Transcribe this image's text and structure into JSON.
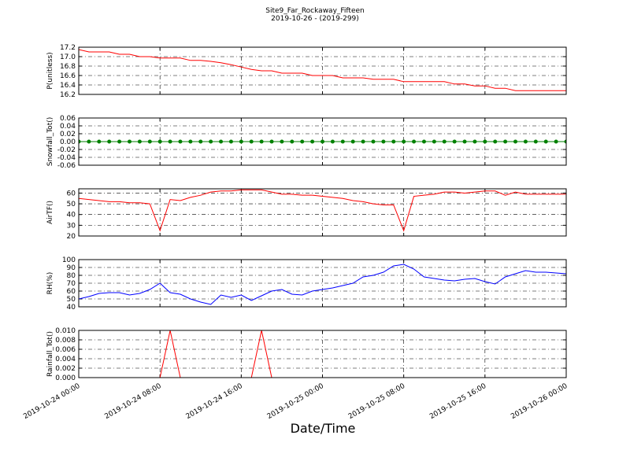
{
  "chart_data": [
    {
      "type": "line",
      "title": "Site9_Far_Rockaway_Fifteen",
      "subtitle": "2019-10-26 - (2019-299)",
      "ylabel": "P(unitless)",
      "color": "#ff0000",
      "xlim": [
        "2019-10-24 00:00",
        "2019-10-26 00:00"
      ],
      "x": [
        "2019-10-24 00:00",
        "2019-10-24 01:00",
        "2019-10-24 02:00",
        "2019-10-24 03:00",
        "2019-10-24 04:00",
        "2019-10-24 05:00",
        "2019-10-24 06:00",
        "2019-10-24 07:00",
        "2019-10-24 08:00",
        "2019-10-24 09:00",
        "2019-10-24 10:00",
        "2019-10-24 11:00",
        "2019-10-24 12:00",
        "2019-10-24 13:00",
        "2019-10-24 14:00",
        "2019-10-24 15:00",
        "2019-10-24 16:00",
        "2019-10-24 17:00",
        "2019-10-24 18:00",
        "2019-10-24 19:00",
        "2019-10-24 20:00",
        "2019-10-24 21:00",
        "2019-10-24 22:00",
        "2019-10-24 23:00",
        "2019-10-25 00:00",
        "2019-10-25 01:00",
        "2019-10-25 02:00",
        "2019-10-25 03:00",
        "2019-10-25 04:00",
        "2019-10-25 05:00",
        "2019-10-25 06:00",
        "2019-10-25 07:00",
        "2019-10-25 08:00",
        "2019-10-25 09:00",
        "2019-10-25 10:00",
        "2019-10-25 11:00",
        "2019-10-25 12:00",
        "2019-10-25 13:00",
        "2019-10-25 14:00",
        "2019-10-25 15:00",
        "2019-10-25 16:00",
        "2019-10-25 17:00",
        "2019-10-25 18:00",
        "2019-10-25 19:00",
        "2019-10-25 20:00",
        "2019-10-25 21:00",
        "2019-10-25 22:00",
        "2019-10-25 23:00",
        "2019-10-26 00:00"
      ],
      "values": [
        17.15,
        17.1,
        17.1,
        17.1,
        17.05,
        17.05,
        17.0,
        17.0,
        16.97,
        16.97,
        16.97,
        16.92,
        16.92,
        16.9,
        16.87,
        16.83,
        16.78,
        16.73,
        16.7,
        16.7,
        16.65,
        16.65,
        16.65,
        16.6,
        16.6,
        16.6,
        16.55,
        16.55,
        16.55,
        16.52,
        16.52,
        16.52,
        16.47,
        16.47,
        16.47,
        16.47,
        16.47,
        16.42,
        16.42,
        16.38,
        16.38,
        16.33,
        16.33,
        16.28,
        16.28,
        16.28,
        16.28,
        16.28,
        16.28
      ],
      "ylim": [
        16.2,
        17.2
      ],
      "yticks": [
        16.2,
        16.4,
        16.6,
        16.8,
        {
          "value": 17.0,
          "label": "17.0"
        },
        17.2
      ],
      "grid": true
    },
    {
      "type": "line",
      "ylabel": "Snowfall_Tot()",
      "color": "#008000",
      "markers": true,
      "xlim": [
        "2019-10-24 00:00",
        "2019-10-26 00:00"
      ],
      "x": [
        "2019-10-24 00:00",
        "2019-10-24 01:00",
        "2019-10-24 02:00",
        "2019-10-24 03:00",
        "2019-10-24 04:00",
        "2019-10-24 05:00",
        "2019-10-24 06:00",
        "2019-10-24 07:00",
        "2019-10-24 08:00",
        "2019-10-24 09:00",
        "2019-10-24 10:00",
        "2019-10-24 11:00",
        "2019-10-24 12:00",
        "2019-10-24 13:00",
        "2019-10-24 14:00",
        "2019-10-24 15:00",
        "2019-10-24 16:00",
        "2019-10-24 17:00",
        "2019-10-24 18:00",
        "2019-10-24 19:00",
        "2019-10-24 20:00",
        "2019-10-24 21:00",
        "2019-10-24 22:00",
        "2019-10-24 23:00",
        "2019-10-25 00:00",
        "2019-10-25 01:00",
        "2019-10-25 02:00",
        "2019-10-25 03:00",
        "2019-10-25 04:00",
        "2019-10-25 05:00",
        "2019-10-25 06:00",
        "2019-10-25 07:00",
        "2019-10-25 08:00",
        "2019-10-25 09:00",
        "2019-10-25 10:00",
        "2019-10-25 11:00",
        "2019-10-25 12:00",
        "2019-10-25 13:00",
        "2019-10-25 14:00",
        "2019-10-25 15:00",
        "2019-10-25 16:00",
        "2019-10-25 17:00",
        "2019-10-25 18:00",
        "2019-10-25 19:00",
        "2019-10-25 20:00",
        "2019-10-25 21:00",
        "2019-10-25 22:00",
        "2019-10-25 23:00",
        "2019-10-26 00:00"
      ],
      "values": [
        0,
        0,
        0,
        0,
        0,
        0,
        0,
        0,
        0,
        0,
        0,
        0,
        0,
        0,
        0,
        0,
        0,
        0,
        0,
        0,
        0,
        0,
        0,
        0,
        0,
        0,
        0,
        0,
        0,
        0,
        0,
        0,
        0,
        0,
        0,
        0,
        0,
        0,
        0,
        0,
        0,
        0,
        0,
        0,
        0,
        0,
        0,
        0,
        0
      ],
      "ylim": [
        -0.06,
        0.06
      ],
      "yticks": [
        -0.06,
        -0.04,
        -0.02,
        {
          "value": 0,
          "label": "0.00"
        },
        0.02,
        0.04,
        0.06
      ],
      "grid": true
    },
    {
      "type": "line",
      "ylabel": "AirTF()",
      "color": "#ff0000",
      "xlim": [
        "2019-10-24 00:00",
        "2019-10-26 00:00"
      ],
      "x": [
        "2019-10-24 00:00",
        "2019-10-24 01:00",
        "2019-10-24 02:00",
        "2019-10-24 03:00",
        "2019-10-24 04:00",
        "2019-10-24 05:00",
        "2019-10-24 06:00",
        "2019-10-24 07:00",
        "2019-10-24 08:00",
        "2019-10-24 09:00",
        "2019-10-24 10:00",
        "2019-10-24 11:00",
        "2019-10-24 12:00",
        "2019-10-24 13:00",
        "2019-10-24 14:00",
        "2019-10-24 15:00",
        "2019-10-24 16:00",
        "2019-10-24 17:00",
        "2019-10-24 18:00",
        "2019-10-24 19:00",
        "2019-10-24 20:00",
        "2019-10-24 21:00",
        "2019-10-24 22:00",
        "2019-10-24 23:00",
        "2019-10-25 00:00",
        "2019-10-25 01:00",
        "2019-10-25 02:00",
        "2019-10-25 03:00",
        "2019-10-25 04:00",
        "2019-10-25 05:00",
        "2019-10-25 06:00",
        "2019-10-25 07:00",
        "2019-10-25 08:00",
        "2019-10-25 09:00",
        "2019-10-25 10:00",
        "2019-10-25 11:00",
        "2019-10-25 12:00",
        "2019-10-25 13:00",
        "2019-10-25 14:00",
        "2019-10-25 15:00",
        "2019-10-25 16:00",
        "2019-10-25 17:00",
        "2019-10-25 18:00",
        "2019-10-25 19:00",
        "2019-10-25 20:00",
        "2019-10-25 21:00",
        "2019-10-25 22:00",
        "2019-10-25 23:00",
        "2019-10-26 00:00"
      ],
      "values": [
        55,
        54,
        53,
        52,
        52,
        51,
        51,
        50,
        25,
        54,
        53,
        56,
        58,
        61,
        62,
        62,
        63,
        63,
        63,
        61,
        59,
        59,
        58,
        58,
        57,
        56,
        55,
        53,
        52,
        50,
        49,
        49,
        25,
        57,
        58,
        59,
        61,
        61,
        60,
        61,
        62,
        62,
        58,
        61,
        59,
        59,
        59,
        59,
        59
      ],
      "ylim": [
        20,
        64
      ],
      "yticks": [
        20,
        30,
        40,
        50,
        60
      ],
      "grid": true
    },
    {
      "type": "line",
      "ylabel": "RH(%)",
      "color": "#0000ff",
      "xlim": [
        "2019-10-24 00:00",
        "2019-10-26 00:00"
      ],
      "x": [
        "2019-10-24 00:00",
        "2019-10-24 01:00",
        "2019-10-24 02:00",
        "2019-10-24 03:00",
        "2019-10-24 04:00",
        "2019-10-24 05:00",
        "2019-10-24 06:00",
        "2019-10-24 07:00",
        "2019-10-24 08:00",
        "2019-10-24 09:00",
        "2019-10-24 10:00",
        "2019-10-24 11:00",
        "2019-10-24 12:00",
        "2019-10-24 13:00",
        "2019-10-24 14:00",
        "2019-10-24 15:00",
        "2019-10-24 16:00",
        "2019-10-24 17:00",
        "2019-10-24 18:00",
        "2019-10-24 19:00",
        "2019-10-24 20:00",
        "2019-10-24 21:00",
        "2019-10-24 22:00",
        "2019-10-24 23:00",
        "2019-10-25 00:00",
        "2019-10-25 01:00",
        "2019-10-25 02:00",
        "2019-10-25 03:00",
        "2019-10-25 04:00",
        "2019-10-25 05:00",
        "2019-10-25 06:00",
        "2019-10-25 07:00",
        "2019-10-25 08:00",
        "2019-10-25 09:00",
        "2019-10-25 10:00",
        "2019-10-25 11:00",
        "2019-10-25 12:00",
        "2019-10-25 13:00",
        "2019-10-25 14:00",
        "2019-10-25 15:00",
        "2019-10-25 16:00",
        "2019-10-25 17:00",
        "2019-10-25 18:00",
        "2019-10-25 19:00",
        "2019-10-25 20:00",
        "2019-10-25 21:00",
        "2019-10-25 22:00",
        "2019-10-25 23:00",
        "2019-10-26 00:00"
      ],
      "values": [
        50,
        53,
        57,
        58,
        58,
        55,
        57,
        62,
        70,
        58,
        56,
        50,
        46,
        43,
        55,
        52,
        55,
        48,
        54,
        60,
        62,
        56,
        55,
        60,
        62,
        64,
        67,
        70,
        78,
        80,
        84,
        92,
        94,
        88,
        78,
        76,
        74,
        73,
        75,
        76,
        72,
        69,
        78,
        82,
        86,
        84,
        84,
        83,
        82
      ],
      "ylim": [
        40,
        100
      ],
      "yticks": [
        40,
        50,
        60,
        70,
        80,
        90,
        100
      ],
      "grid": true
    },
    {
      "type": "line",
      "ylabel": "Rainfall_Tot()",
      "xlabel": "Date/Time",
      "color": "#ff0000",
      "xlim": [
        "2019-10-24 00:00",
        "2019-10-26 00:00"
      ],
      "x": [
        "2019-10-24 00:00",
        "2019-10-24 01:00",
        "2019-10-24 02:00",
        "2019-10-24 03:00",
        "2019-10-24 04:00",
        "2019-10-24 05:00",
        "2019-10-24 06:00",
        "2019-10-24 07:00",
        "2019-10-24 08:00",
        "2019-10-24 09:00",
        "2019-10-24 10:00",
        "2019-10-24 11:00",
        "2019-10-24 12:00",
        "2019-10-24 13:00",
        "2019-10-24 14:00",
        "2019-10-24 15:00",
        "2019-10-24 16:00",
        "2019-10-24 17:00",
        "2019-10-24 18:00",
        "2019-10-24 19:00",
        "2019-10-24 20:00",
        "2019-10-24 21:00",
        "2019-10-24 22:00",
        "2019-10-24 23:00",
        "2019-10-25 00:00",
        "2019-10-25 01:00",
        "2019-10-25 02:00",
        "2019-10-25 03:00",
        "2019-10-25 04:00",
        "2019-10-25 05:00",
        "2019-10-25 06:00",
        "2019-10-25 07:00",
        "2019-10-25 08:00",
        "2019-10-25 09:00",
        "2019-10-25 10:00",
        "2019-10-25 11:00",
        "2019-10-25 12:00",
        "2019-10-25 13:00",
        "2019-10-25 14:00",
        "2019-10-25 15:00",
        "2019-10-25 16:00",
        "2019-10-25 17:00",
        "2019-10-25 18:00",
        "2019-10-25 19:00",
        "2019-10-25 20:00",
        "2019-10-25 21:00",
        "2019-10-25 22:00",
        "2019-10-25 23:00",
        "2019-10-26 00:00"
      ],
      "values": [
        0,
        0,
        0,
        0,
        0,
        0,
        0,
        0,
        0,
        0.01,
        0,
        0,
        0,
        0,
        0,
        0,
        0,
        0,
        0.01,
        0,
        0,
        0,
        0,
        0,
        0,
        0,
        0,
        0,
        0,
        0,
        0,
        0,
        0,
        0,
        0,
        0,
        0,
        0,
        0,
        0,
        0,
        0,
        0,
        0,
        0,
        0,
        0,
        0,
        0
      ],
      "ylim": [
        0,
        0.01
      ],
      "yticks": [
        {
          "value": 0,
          "label": "0.000"
        },
        0.002,
        0.004,
        0.006,
        0.008,
        {
          "value": 0.01,
          "label": "0.010"
        }
      ],
      "xticks": [
        "2019-10-24 00:00",
        "2019-10-24 08:00",
        "2019-10-24 16:00",
        "2019-10-25 00:00",
        "2019-10-25 08:00",
        "2019-10-25 16:00",
        "2019-10-26 00:00"
      ],
      "grid": true
    }
  ]
}
